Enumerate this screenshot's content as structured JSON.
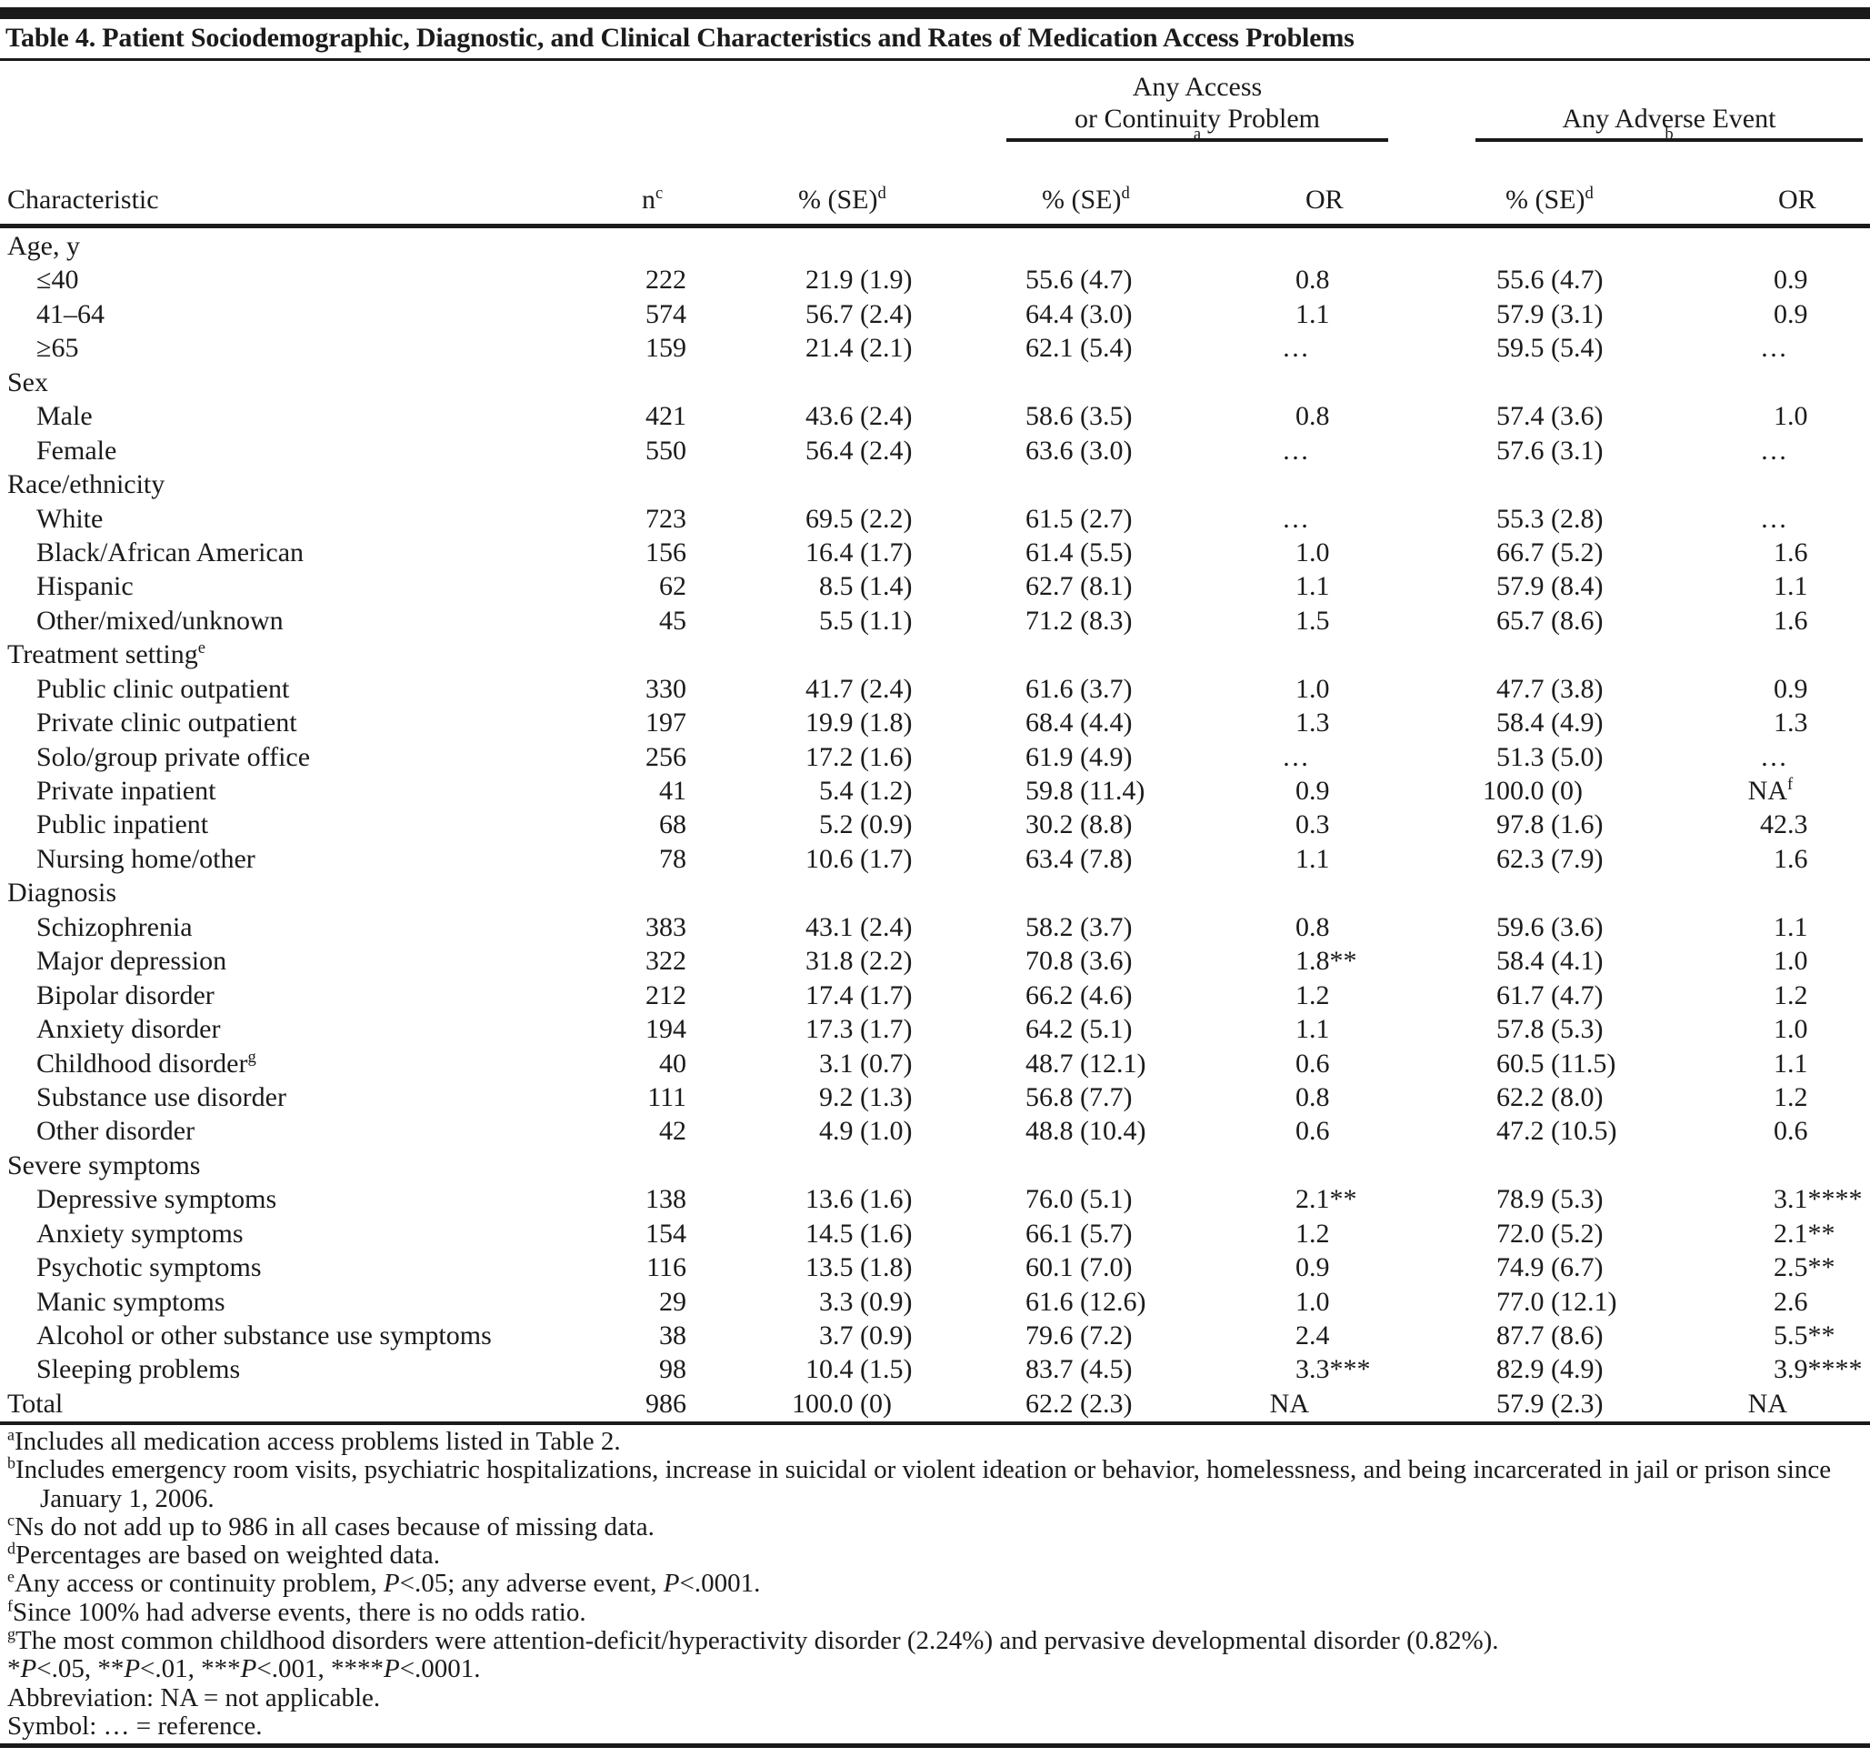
{
  "document": {
    "title": "Table 4. Patient Sociodemographic, Diagnostic, and Clinical Characteristics and Rates of Medication Access Problems"
  },
  "table": {
    "spanners": [
      {
        "label": "Any Access\nor Continuity Problem^a"
      },
      {
        "label": "Any Adverse Event^b"
      }
    ],
    "columns": [
      "Characteristic",
      "n^c",
      "% (SE)^d",
      "% (SE)^d",
      "OR",
      "% (SE)^d",
      "OR"
    ],
    "rows": [
      {
        "label": "Age, y",
        "section": true
      },
      {
        "label": "≤40",
        "indent": 1,
        "cells": [
          "222",
          "21.9 (1.9)",
          "55.6 (4.7)",
          "0.8",
          "55.6 (4.7)",
          "0.9"
        ]
      },
      {
        "label": "41–64",
        "indent": 1,
        "cells": [
          "574",
          "56.7 (2.4)",
          "64.4 (3.0)",
          "1.1",
          "57.9 (3.1)",
          "0.9"
        ]
      },
      {
        "label": "≥65",
        "indent": 1,
        "cells": [
          "159",
          "21.4 (2.1)",
          "62.1 (5.4)",
          "…",
          "59.5 (5.4)",
          "…"
        ]
      },
      {
        "label": "Sex",
        "section": true
      },
      {
        "label": "Male",
        "indent": 1,
        "cells": [
          "421",
          "43.6 (2.4)",
          "58.6 (3.5)",
          "0.8",
          "57.4 (3.6)",
          "1.0"
        ]
      },
      {
        "label": "Female",
        "indent": 1,
        "cells": [
          "550",
          "56.4 (2.4)",
          "63.6 (3.0)",
          "…",
          "57.6 (3.1)",
          "…"
        ]
      },
      {
        "label": "Race/ethnicity",
        "section": true
      },
      {
        "label": "White",
        "indent": 1,
        "cells": [
          "723",
          "69.5 (2.2)",
          "61.5 (2.7)",
          "…",
          "55.3 (2.8)",
          "…"
        ]
      },
      {
        "label": "Black/African American",
        "indent": 1,
        "cells": [
          "156",
          "16.4 (1.7)",
          "61.4 (5.5)",
          "1.0",
          "66.7 (5.2)",
          "1.6"
        ]
      },
      {
        "label": "Hispanic",
        "indent": 1,
        "cells": [
          "62",
          "8.5 (1.4)",
          "62.7 (8.1)",
          "1.1",
          "57.9 (8.4)",
          "1.1"
        ]
      },
      {
        "label": "Other/mixed/unknown",
        "indent": 1,
        "cells": [
          "45",
          "5.5 (1.1)",
          "71.2 (8.3)",
          "1.5",
          "65.7 (8.6)",
          "1.6"
        ]
      },
      {
        "label": "Treatment setting^e",
        "section": true
      },
      {
        "label": "Public clinic outpatient",
        "indent": 1,
        "cells": [
          "330",
          "41.7 (2.4)",
          "61.6 (3.7)",
          "1.0",
          "47.7 (3.8)",
          "0.9"
        ]
      },
      {
        "label": "Private clinic outpatient",
        "indent": 1,
        "cells": [
          "197",
          "19.9 (1.8)",
          "68.4 (4.4)",
          "1.3",
          "58.4 (4.9)",
          "1.3"
        ]
      },
      {
        "label": "Solo/group private office",
        "indent": 1,
        "cells": [
          "256",
          "17.2 (1.6)",
          "61.9 (4.9)",
          "…",
          "51.3 (5.0)",
          "…"
        ]
      },
      {
        "label": "Private inpatient",
        "indent": 1,
        "cells": [
          "41",
          "5.4 (1.2)",
          "59.8 (11.4)",
          "0.9",
          "100.0 (0)",
          "NA^f"
        ]
      },
      {
        "label": "Public inpatient",
        "indent": 1,
        "cells": [
          "68",
          "5.2 (0.9)",
          "30.2 (8.8)",
          "0.3",
          "97.8 (1.6)",
          "42.3"
        ]
      },
      {
        "label": "Nursing home/other",
        "indent": 1,
        "cells": [
          "78",
          "10.6 (1.7)",
          "63.4 (7.8)",
          "1.1",
          "62.3 (7.9)",
          "1.6"
        ]
      },
      {
        "label": "Diagnosis",
        "section": true
      },
      {
        "label": "Schizophrenia",
        "indent": 1,
        "cells": [
          "383",
          "43.1 (2.4)",
          "58.2 (3.7)",
          "0.8",
          "59.6 (3.6)",
          "1.1"
        ]
      },
      {
        "label": "Major depression",
        "indent": 1,
        "cells": [
          "322",
          "31.8 (2.2)",
          "70.8 (3.6)",
          "1.8**",
          "58.4 (4.1)",
          "1.0"
        ]
      },
      {
        "label": "Bipolar disorder",
        "indent": 1,
        "cells": [
          "212",
          "17.4 (1.7)",
          "66.2 (4.6)",
          "1.2",
          "61.7 (4.7)",
          "1.2"
        ]
      },
      {
        "label": "Anxiety disorder",
        "indent": 1,
        "cells": [
          "194",
          "17.3 (1.7)",
          "64.2 (5.1)",
          "1.1",
          "57.8 (5.3)",
          "1.0"
        ]
      },
      {
        "label": "Childhood disorder^g",
        "indent": 1,
        "cells": [
          "40",
          "3.1 (0.7)",
          "48.7 (12.1)",
          "0.6",
          "60.5 (11.5)",
          "1.1"
        ]
      },
      {
        "label": "Substance use disorder",
        "indent": 1,
        "cells": [
          "111",
          "9.2 (1.3)",
          "56.8 (7.7)",
          "0.8",
          "62.2 (8.0)",
          "1.2"
        ]
      },
      {
        "label": "Other disorder",
        "indent": 1,
        "cells": [
          "42",
          "4.9 (1.0)",
          "48.8 (10.4)",
          "0.6",
          "47.2 (10.5)",
          "0.6"
        ]
      },
      {
        "label": "Severe symptoms",
        "section": true
      },
      {
        "label": "Depressive symptoms",
        "indent": 1,
        "cells": [
          "138",
          "13.6 (1.6)",
          "76.0 (5.1)",
          "2.1**",
          "78.9 (5.3)",
          "3.1****"
        ]
      },
      {
        "label": "Anxiety symptoms",
        "indent": 1,
        "cells": [
          "154",
          "14.5 (1.6)",
          "66.1 (5.7)",
          "1.2",
          "72.0 (5.2)",
          "2.1**"
        ]
      },
      {
        "label": "Psychotic symptoms",
        "indent": 1,
        "cells": [
          "116",
          "13.5 (1.8)",
          "60.1 (7.0)",
          "0.9",
          "74.9 (6.7)",
          "2.5**"
        ]
      },
      {
        "label": "Manic symptoms",
        "indent": 1,
        "cells": [
          "29",
          "3.3 (0.9)",
          "61.6 (12.6)",
          "1.0",
          "77.0 (12.1)",
          "2.6"
        ]
      },
      {
        "label": "Alcohol or other substance use symptoms",
        "indent": 1,
        "cells": [
          "38",
          "3.7 (0.9)",
          "79.6 (7.2)",
          "2.4",
          "87.7 (8.6)",
          "5.5**"
        ]
      },
      {
        "label": "Sleeping problems",
        "indent": 1,
        "cells": [
          "98",
          "10.4 (1.5)",
          "83.7 (4.5)",
          "3.3***",
          "82.9 (4.9)",
          "3.9****"
        ]
      },
      {
        "label": "Total",
        "cells": [
          "986",
          "100.0 (0)",
          "62.2 (2.3)",
          "NA",
          "57.9 (2.3)",
          "NA"
        ]
      }
    ],
    "footnotes": [
      "^aIncludes all medication access problems listed in Table 2.",
      "^bIncludes emergency room visits, psychiatric hospitalizations, increase in suicidal or violent ideation or behavior, homelessness, and being incarcerated in jail or prison since January 1, 2006.",
      "^cNs do not add up to 986 in all cases because of missing data.",
      "^dPercentages are based on weighted data.",
      "^eAny access or continuity problem, P<.05; any adverse event, P<.0001.",
      "^fSince 100% had adverse events, there is no odds ratio.",
      "^gThe most common childhood disorders were attention-deficit/hyperactivity disorder (2.24%) and pervasive developmental disorder (0.82%).",
      "*P<.05, **P<.01, ***P<.001, ****P<.0001.",
      "Abbreviation: NA = not applicable.",
      "Symbol: … = reference."
    ],
    "colors": {
      "text": "#1b1b1b",
      "rule": "#1a1a1a",
      "background": "#ffffff"
    }
  }
}
